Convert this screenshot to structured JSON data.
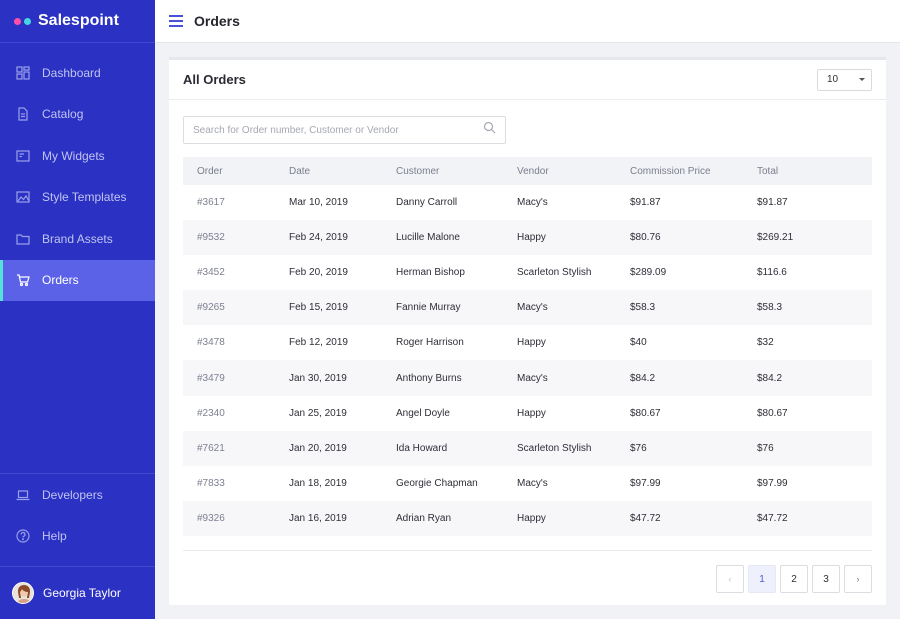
{
  "brand": {
    "name": "Salespoint",
    "dot_colors": [
      "#ff4fa7",
      "#46d6e0"
    ]
  },
  "sidebar": {
    "items": [
      {
        "label": "Dashboard",
        "icon": "dashboard-icon",
        "active": false
      },
      {
        "label": "Catalog",
        "icon": "document-icon",
        "active": false
      },
      {
        "label": "My Widgets",
        "icon": "widget-icon",
        "active": false
      },
      {
        "label": "Style Templates",
        "icon": "image-icon",
        "active": false
      },
      {
        "label": "Brand Assets",
        "icon": "folder-icon",
        "active": false
      },
      {
        "label": "Orders",
        "icon": "cart-icon",
        "active": true
      }
    ],
    "bottom_items": [
      {
        "label": "Developers",
        "icon": "laptop-icon"
      },
      {
        "label": "Help",
        "icon": "help-icon"
      }
    ],
    "user": {
      "name": "Georgia Taylor"
    }
  },
  "header": {
    "title": "Orders"
  },
  "card": {
    "title": "All Orders",
    "page_size": "10",
    "search_placeholder": "Search for Order number, Customer or Vendor"
  },
  "table": {
    "columns": [
      "Order",
      "Date",
      "Customer",
      "Vendor",
      "Commission Price",
      "Total"
    ],
    "rows": [
      [
        "#3617",
        "Mar 10, 2019",
        "Danny Carroll",
        "Macy's",
        "$91.87",
        "$91.87"
      ],
      [
        "#9532",
        "Feb 24, 2019",
        "Lucille Malone",
        "Happy",
        "$80.76",
        "$269.21"
      ],
      [
        "#3452",
        "Feb 20, 2019",
        "Herman Bishop",
        "Scarleton Stylish",
        "$289.09",
        "$116.6"
      ],
      [
        "#9265",
        "Feb 15, 2019",
        "Fannie Murray",
        "Macy's",
        "$58.3",
        "$58.3"
      ],
      [
        "#3478",
        "Feb 12, 2019",
        "Roger Harrison",
        "Happy",
        "$40",
        "$32"
      ],
      [
        "#3479",
        "Jan 30, 2019",
        "Anthony Burns",
        "Macy's",
        "$84.2",
        "$84.2"
      ],
      [
        "#2340",
        "Jan 25, 2019",
        "Angel Doyle",
        "Happy",
        "$80.67",
        "$80.67"
      ],
      [
        "#7621",
        "Jan 20, 2019",
        "Ida Howard",
        "Scarleton Stylish",
        "$76",
        "$76"
      ],
      [
        "#7833",
        "Jan 18, 2019",
        "Georgie Chapman",
        "Macy's",
        "$97.99",
        "$97.99"
      ],
      [
        "#9326",
        "Jan 16, 2019",
        "Adrian Ryan",
        "Happy",
        "$47.72",
        "$47.72"
      ]
    ]
  },
  "pagination": {
    "pages": [
      "1",
      "2",
      "3"
    ],
    "current": "1",
    "prev": "‹",
    "next": "›"
  }
}
